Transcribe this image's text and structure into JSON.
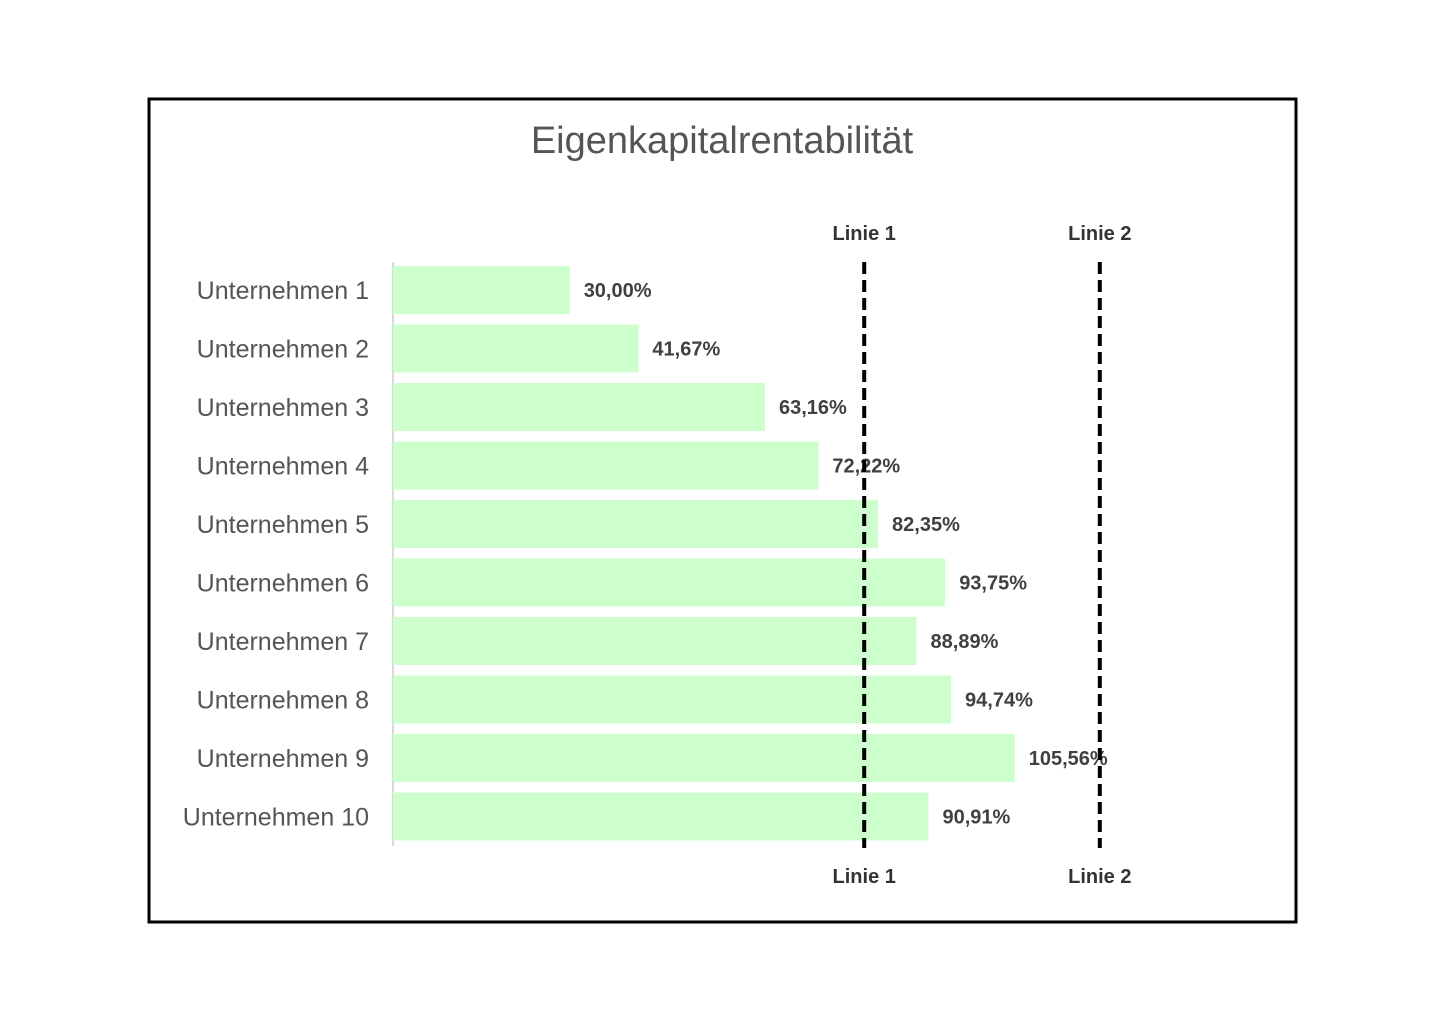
{
  "chart_data": {
    "type": "bar",
    "orientation": "horizontal",
    "title": "Eigenkapitalrentabilität",
    "xlabel": "",
    "ylabel": "",
    "categories": [
      "Unternehmen 1",
      "Unternehmen 2",
      "Unternehmen 3",
      "Unternehmen 4",
      "Unternehmen 5",
      "Unternehmen 6",
      "Unternehmen 7",
      "Unternehmen 8",
      "Unternehmen 9",
      "Unternehmen 10"
    ],
    "values": [
      30.0,
      41.67,
      63.16,
      72.22,
      82.35,
      93.75,
      88.89,
      94.74,
      105.56,
      90.91
    ],
    "value_labels": [
      "30,00%",
      "41,67%",
      "63,16%",
      "72,22%",
      "82,35%",
      "93,75%",
      "88,89%",
      "94,74%",
      "105,56%",
      "90,91%"
    ],
    "xlim": [
      0,
      150
    ],
    "grid": false,
    "bar_color": "#ccffcc",
    "reference_lines": [
      {
        "label": "Linie 1",
        "value": 80,
        "style": "dashed",
        "color": "#000000"
      },
      {
        "label": "Linie 2",
        "value": 120,
        "style": "dashed",
        "color": "#000000"
      }
    ]
  }
}
